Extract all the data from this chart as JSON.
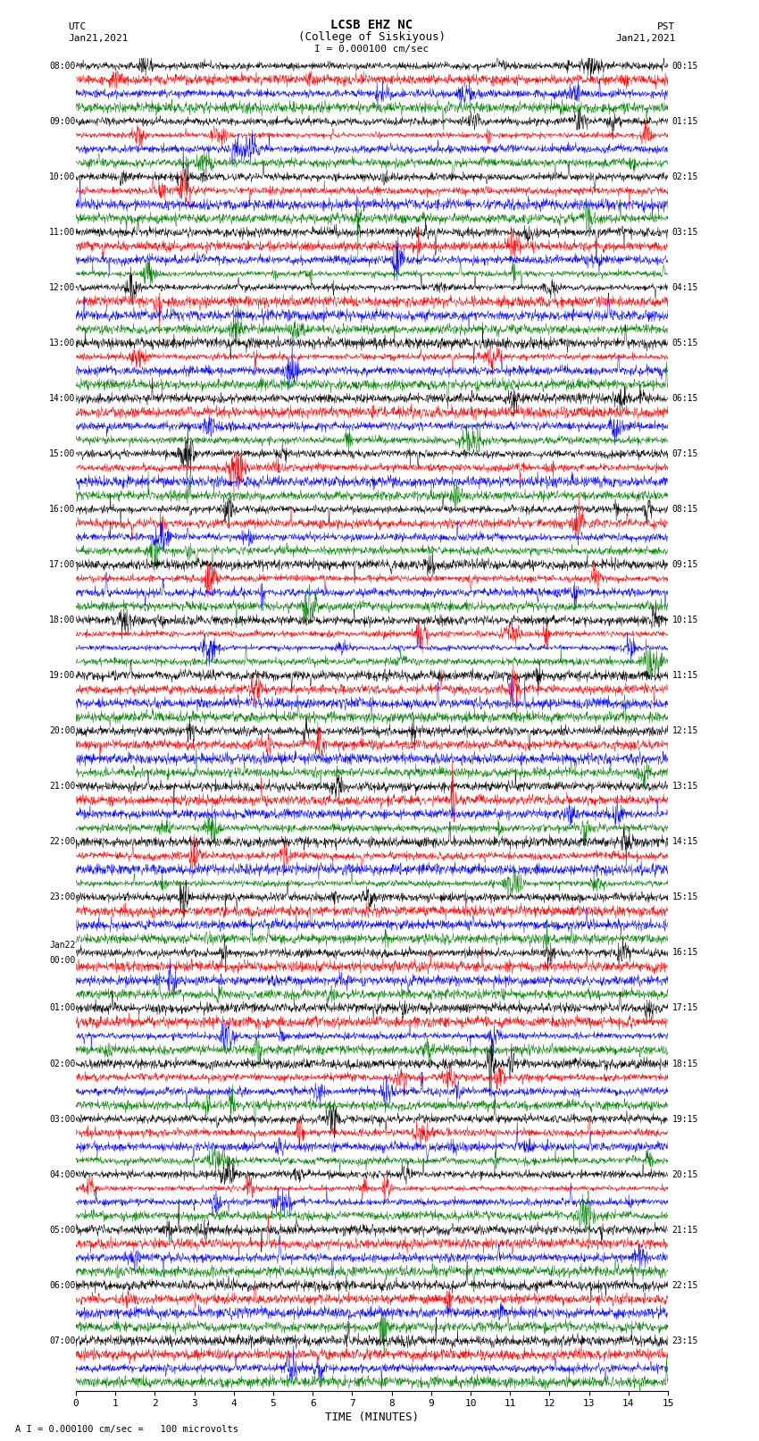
{
  "title_line1": "LCSB EHZ NC",
  "title_line2": "(College of Siskiyous)",
  "scale_label": "I = 0.000100 cm/sec",
  "bottom_label": "A I = 0.000100 cm/sec =   100 microvolts",
  "xlabel": "TIME (MINUTES)",
  "utc_top": "UTC",
  "utc_date": "Jan21,2021",
  "pst_top": "PST",
  "pst_date": "Jan21,2021",
  "left_times": [
    "08:00",
    "09:00",
    "10:00",
    "11:00",
    "12:00",
    "13:00",
    "14:00",
    "15:00",
    "16:00",
    "17:00",
    "18:00",
    "19:00",
    "20:00",
    "21:00",
    "22:00",
    "23:00",
    "Jan22\n00:00",
    "01:00",
    "02:00",
    "03:00",
    "04:00",
    "05:00",
    "06:00",
    "07:00"
  ],
  "right_times": [
    "00:15",
    "01:15",
    "02:15",
    "03:15",
    "04:15",
    "05:15",
    "06:15",
    "07:15",
    "08:15",
    "09:15",
    "10:15",
    "11:15",
    "12:15",
    "13:15",
    "14:15",
    "15:15",
    "16:15",
    "17:15",
    "18:15",
    "19:15",
    "20:15",
    "21:15",
    "22:15",
    "23:15"
  ],
  "trace_color_cycle": [
    "black",
    "red",
    "blue",
    "green"
  ],
  "n_rows": 96,
  "minutes": 15,
  "bg_color": "white",
  "seed": 12345,
  "hour_label_rows": [
    0,
    4,
    8,
    12,
    16,
    20,
    24,
    28,
    32,
    36,
    40,
    44,
    48,
    52,
    56,
    60,
    64,
    68,
    72,
    76,
    80,
    84,
    88,
    92
  ]
}
